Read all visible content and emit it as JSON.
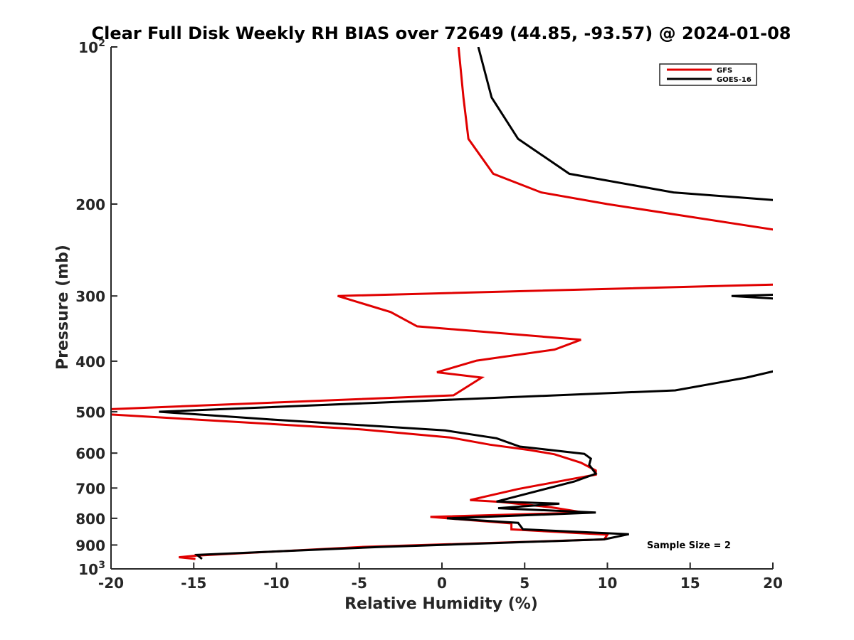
{
  "chart_data": {
    "type": "line",
    "title": "Clear Full Disk Weekly RH BIAS over 72649 (44.85, -93.57) @ 2024-01-08",
    "xlabel": "Relative Humidity (%)",
    "ylabel": "Pressure (mb)",
    "xlim": [
      -20,
      20
    ],
    "ylim": [
      100,
      1000
    ],
    "yscale": "log",
    "y_reversed": true,
    "xticks": [
      -20,
      -15,
      -10,
      -5,
      0,
      5,
      10,
      15,
      20
    ],
    "yticks": [
      {
        "value": 100,
        "label": "10",
        "sup": "2"
      },
      {
        "value": 200,
        "label": "200",
        "sup": ""
      },
      {
        "value": 300,
        "label": "300",
        "sup": ""
      },
      {
        "value": 400,
        "label": "400",
        "sup": ""
      },
      {
        "value": 500,
        "label": "500",
        "sup": ""
      },
      {
        "value": 600,
        "label": "600",
        "sup": ""
      },
      {
        "value": 700,
        "label": "700",
        "sup": ""
      },
      {
        "value": 800,
        "label": "800",
        "sup": ""
      },
      {
        "value": 900,
        "label": "900",
        "sup": ""
      },
      {
        "value": 1000,
        "label": "10",
        "sup": "3"
      }
    ],
    "legend_position": "top-right",
    "grid": false,
    "annotation": "Sample Size = 2",
    "series": [
      {
        "name": "GFS",
        "color": "#e00000",
        "points": [
          [
            1.0,
            100
          ],
          [
            1.3,
            125
          ],
          [
            1.6,
            150
          ],
          [
            3.1,
            175
          ],
          [
            6.0,
            190
          ],
          [
            10.0,
            200
          ],
          [
            20.5,
            225
          ],
          [
            20.5,
            285
          ],
          [
            -6.3,
            300
          ],
          [
            -3.1,
            322
          ],
          [
            -1.5,
            343
          ],
          [
            8.4,
            364
          ],
          [
            6.8,
            380
          ],
          [
            2.1,
            399
          ],
          [
            -0.3,
            420
          ],
          [
            2.4,
            430
          ],
          [
            0.7,
            465
          ],
          [
            -20.5,
            495
          ],
          [
            -20.5,
            505
          ],
          [
            -5.0,
            540
          ],
          [
            0.5,
            560
          ],
          [
            2.9,
            578
          ],
          [
            5.3,
            592
          ],
          [
            6.8,
            603
          ],
          [
            8.4,
            626
          ],
          [
            9.3,
            648
          ],
          [
            9.3,
            660
          ],
          [
            7.8,
            673
          ],
          [
            4.6,
            703
          ],
          [
            1.7,
            738
          ],
          [
            3.5,
            744
          ],
          [
            6.6,
            762
          ],
          [
            8.6,
            780
          ],
          [
            -0.7,
            795
          ],
          [
            4.2,
            818
          ],
          [
            4.2,
            840
          ],
          [
            10.0,
            860
          ],
          [
            9.8,
            878
          ],
          [
            -4.9,
            908
          ],
          [
            -14.8,
            943
          ],
          [
            -15.9,
            950
          ],
          [
            -14.9,
            957
          ]
        ]
      },
      {
        "name": "GOES-16",
        "color": "#000000",
        "points": [
          [
            2.2,
            100
          ],
          [
            3.0,
            125
          ],
          [
            4.6,
            150
          ],
          [
            7.7,
            175
          ],
          [
            14.0,
            190
          ],
          [
            20.5,
            197
          ],
          [
            20.5,
            298
          ],
          [
            17.5,
            300
          ],
          [
            20.5,
            304
          ],
          [
            20.5,
            415
          ],
          [
            18.4,
            430
          ],
          [
            14.1,
            455
          ],
          [
            -17.1,
            500
          ],
          [
            -10.1,
            518
          ],
          [
            0.2,
            543
          ],
          [
            3.3,
            562
          ],
          [
            4.7,
            583
          ],
          [
            8.6,
            602
          ],
          [
            9.0,
            615
          ],
          [
            8.9,
            632
          ],
          [
            9.3,
            657
          ],
          [
            8.0,
            680
          ],
          [
            3.3,
            743
          ],
          [
            7.1,
            750
          ],
          [
            3.4,
            765
          ],
          [
            9.3,
            780
          ],
          [
            0.3,
            800
          ],
          [
            4.6,
            816
          ],
          [
            4.9,
            840
          ],
          [
            11.3,
            858
          ],
          [
            9.8,
            878
          ],
          [
            -3.8,
            908
          ],
          [
            -14.8,
            940
          ],
          [
            -14.5,
            957
          ]
        ]
      }
    ]
  }
}
